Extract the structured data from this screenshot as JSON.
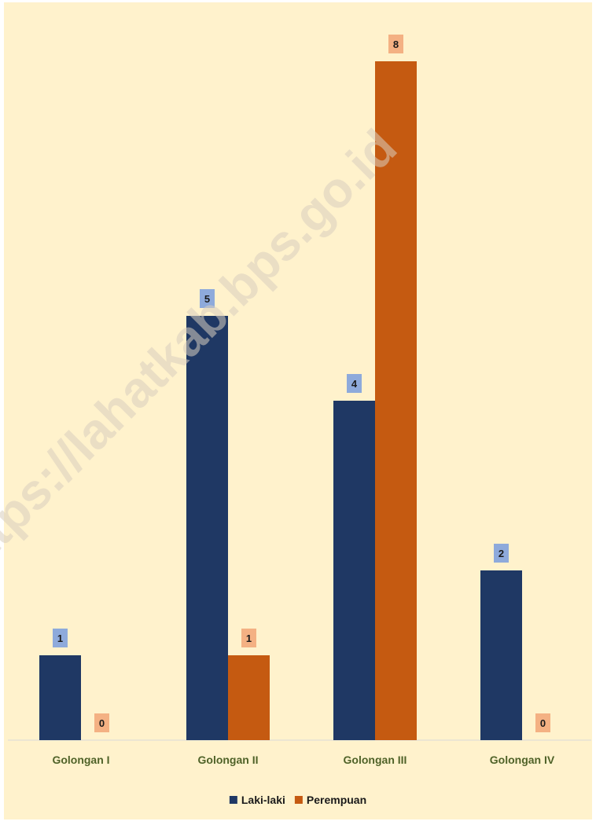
{
  "watermark": "https://lahatkab.bps.go.id",
  "colors": {
    "background": "#fff2cc",
    "baseline": "#d9d9d9",
    "category_label": "#4f6228",
    "laki_bar": "#1f3864",
    "laki_label_bg": "#8eaadb",
    "perempuan_bar": "#c55a11",
    "perempuan_label_bg": "#f4b183"
  },
  "chart_data": {
    "type": "bar",
    "title": "",
    "xlabel": "",
    "ylabel": "",
    "categories": [
      "Golongan I",
      "Golongan II",
      "Golongan III",
      "Golongan IV"
    ],
    "series": [
      {
        "name": "Laki-laki",
        "values": [
          1,
          5,
          4,
          2
        ]
      },
      {
        "name": "Perempuan",
        "values": [
          0,
          1,
          8,
          0
        ]
      }
    ],
    "ylim": [
      0,
      8
    ],
    "grid": false,
    "legend": "bottom",
    "data_labels": true
  }
}
